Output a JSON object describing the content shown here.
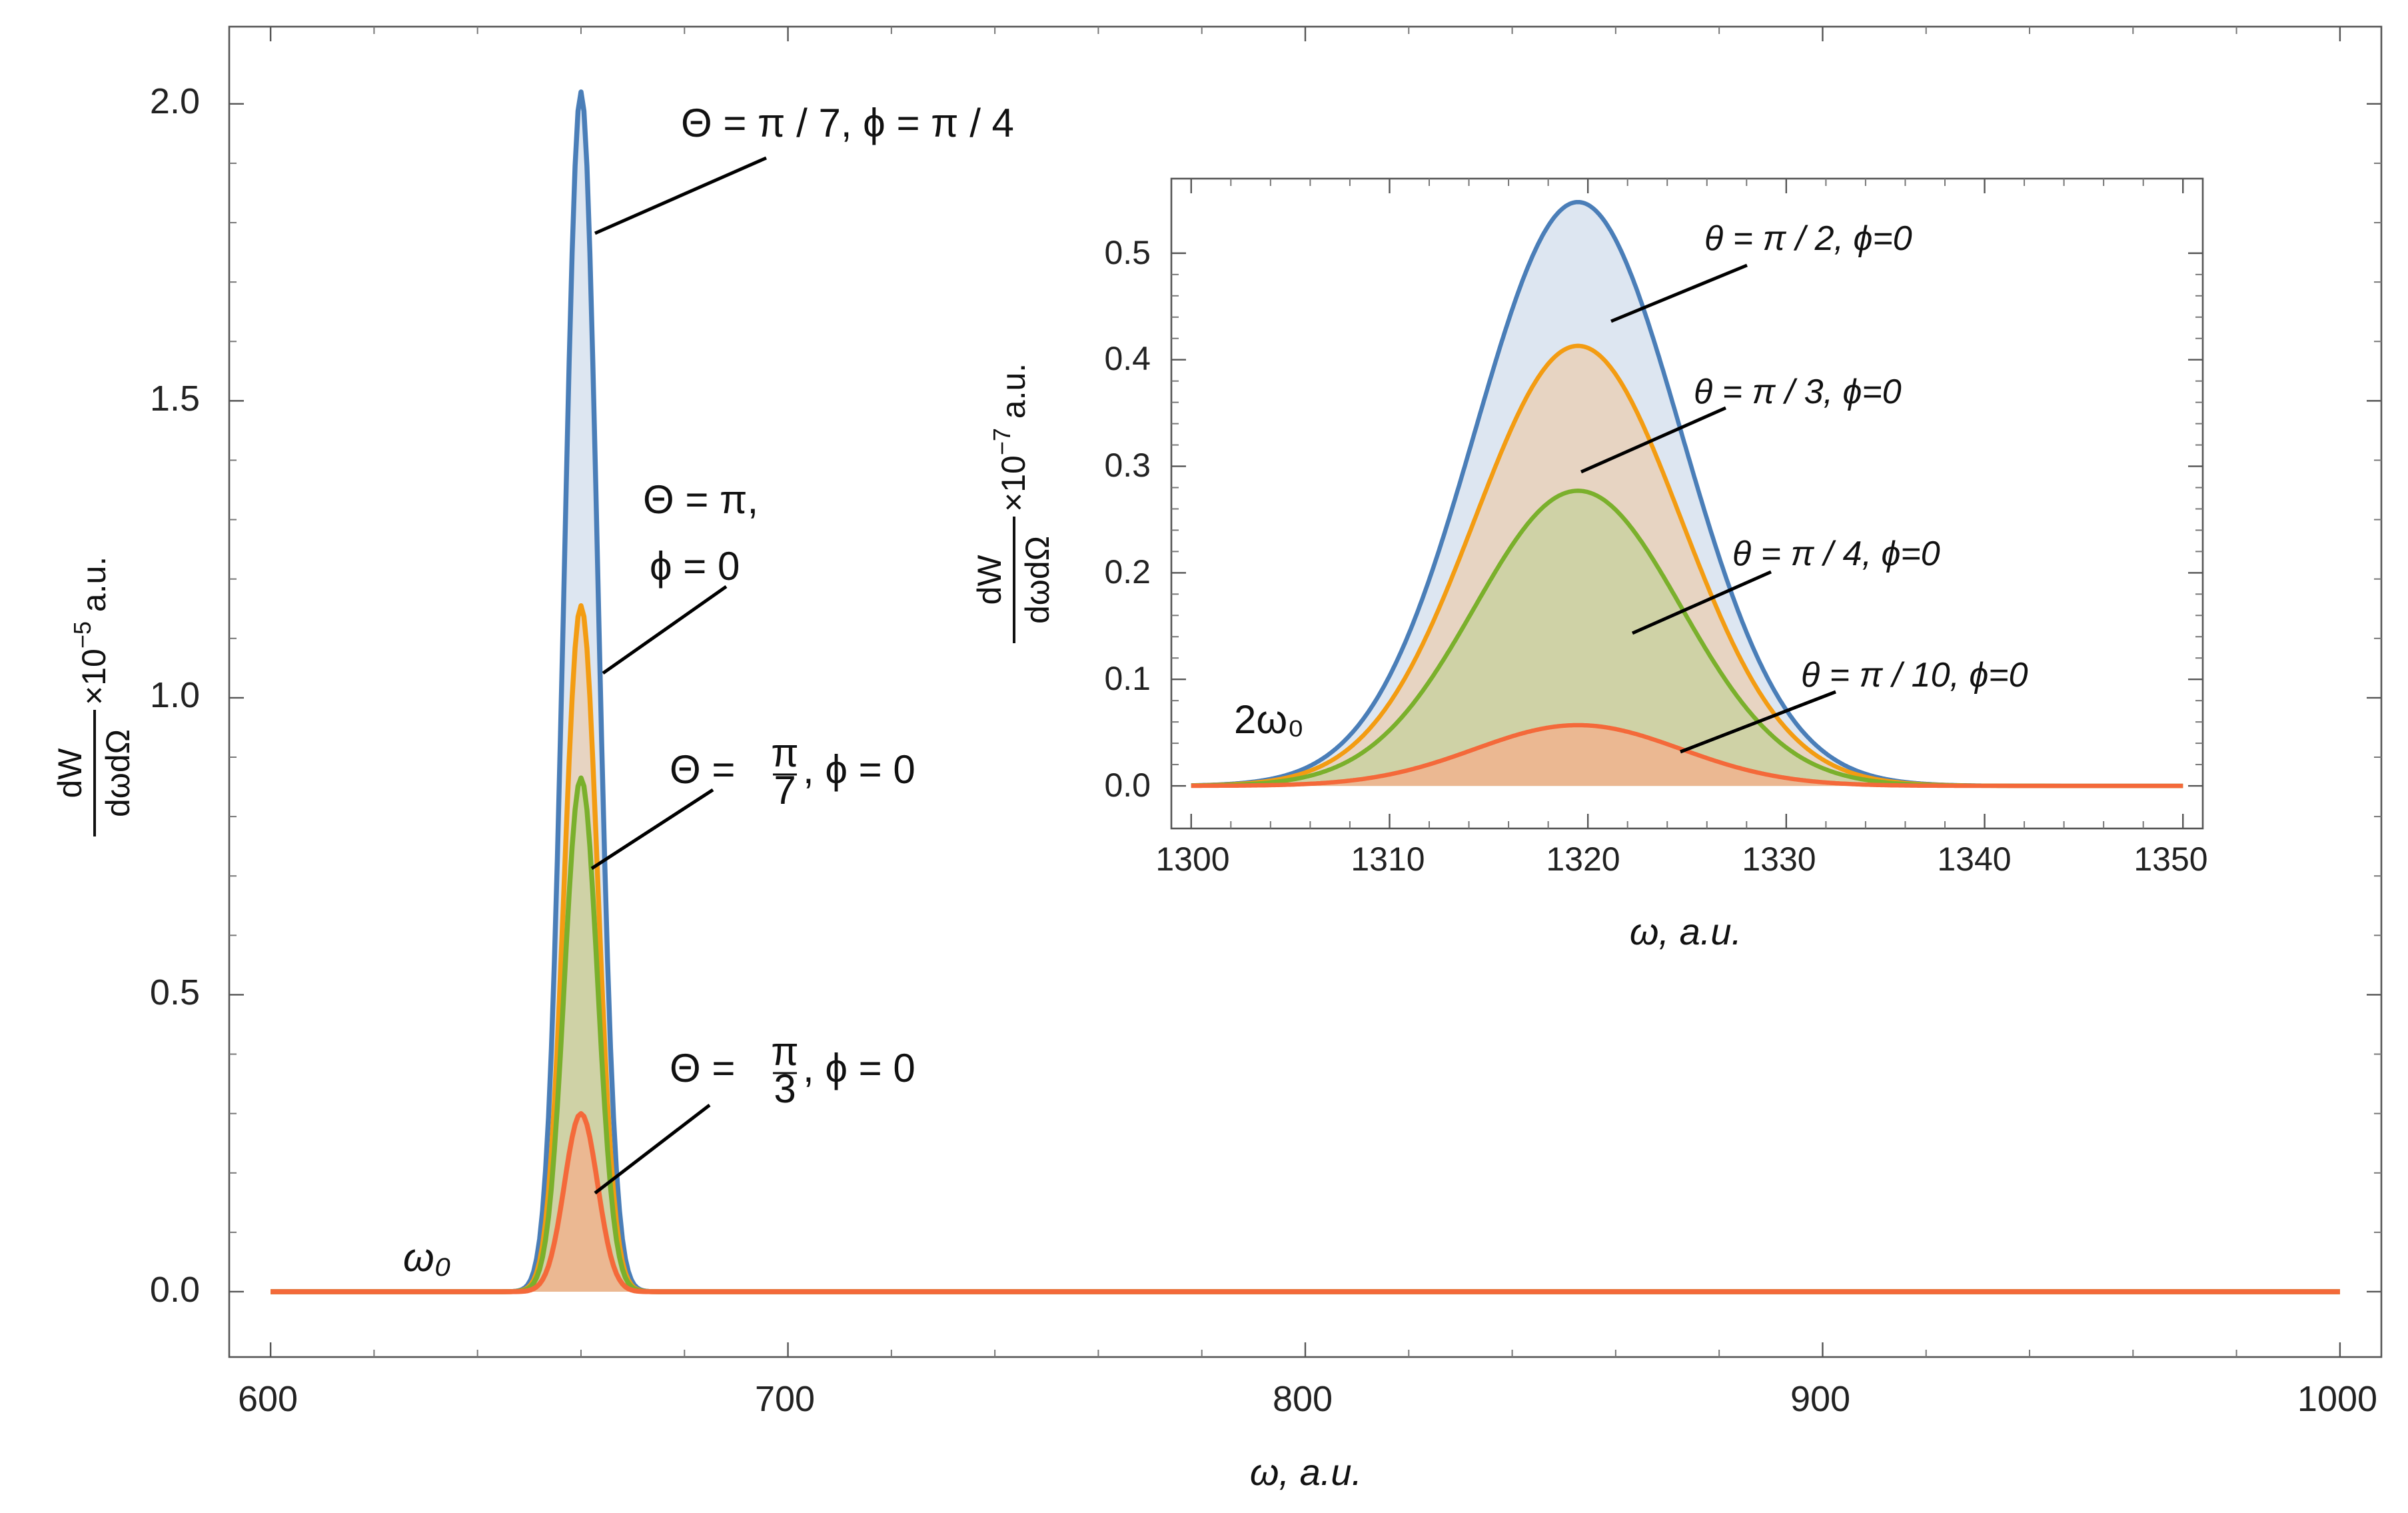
{
  "colors": {
    "blue": "#4a7eb8",
    "orange": "#f39c12",
    "green": "#7ab02c",
    "red": "#f4693a",
    "fill_blue": "#dde6f1",
    "fill_orange": "#e7d4c2",
    "fill_green": "#cfd2a6",
    "fill_red": "#ebb892"
  },
  "chart_data": [
    {
      "type": "area",
      "id": "main",
      "title": "",
      "xlabel": "ω, a.u.",
      "ylabel": {
        "numerator": "dW",
        "denominator": "dωdΩ",
        "times": "×10",
        "exponent": "−5",
        "unit": " a.u."
      },
      "xlim": [
        592,
        1008
      ],
      "ylim": [
        -0.11,
        2.13
      ],
      "x_ticks": [
        "600",
        "700",
        "800",
        "900",
        "1000"
      ],
      "x_tick_values": [
        600,
        700,
        800,
        900,
        1000
      ],
      "y_ticks": [
        "0.0",
        "0.5",
        "1.0",
        "1.5",
        "2.0"
      ],
      "y_tick_values": [
        0,
        0.5,
        1.0,
        1.5,
        2.0
      ],
      "peak_label": "ω₀",
      "curve_center": 660,
      "curve_sigma": 3.2,
      "x_range": [
        600,
        1000
      ],
      "series": [
        {
          "name": "Θ = π / 7, ϕ = π / 4",
          "peak": 2.02,
          "color": "blue"
        },
        {
          "name": "Θ = π, ϕ = 0",
          "peak": 1.155,
          "color": "orange"
        },
        {
          "name": "Θ = π/7, ϕ = 0",
          "peak": 0.865,
          "color": "green"
        },
        {
          "name": "Θ = π/3, ϕ = 0",
          "peak": 0.3,
          "color": "red"
        }
      ],
      "annotations": {
        "a1": "Θ = π / 7, ϕ = π / 4",
        "a2_line1": "Θ = π,",
        "a2_line2": "ϕ = 0",
        "a3_prefix": "Θ = ",
        "a3_num": "π",
        "a3_den": "7",
        "a3_suffix": ", ϕ = 0",
        "a4_prefix": "Θ = ",
        "a4_num": "π",
        "a4_den": "3",
        "a4_suffix": ", ϕ = 0"
      }
    },
    {
      "type": "area",
      "id": "inset",
      "title": "",
      "xlabel": "ω, a.u.",
      "ylabel": {
        "numerator": "dW",
        "denominator": "dωdΩ",
        "times": "×10",
        "exponent": "−7",
        "unit": " a.u."
      },
      "xlim": [
        1299,
        1351
      ],
      "ylim": [
        -0.04,
        0.57
      ],
      "x_ticks": [
        "1300",
        "1310",
        "1320",
        "1330",
        "1340",
        "1350"
      ],
      "x_tick_values": [
        1300,
        1310,
        1320,
        1330,
        1340,
        1350
      ],
      "y_ticks": [
        "0.0",
        "0.1",
        "0.2",
        "0.3",
        "0.4",
        "0.5"
      ],
      "y_tick_values": [
        0,
        0.1,
        0.2,
        0.3,
        0.4,
        0.5
      ],
      "peak_label": "2ω₀",
      "curve_center": 1319.5,
      "curve_sigma": 5.2,
      "x_range": [
        1300,
        1350
      ],
      "series": [
        {
          "name": "θ = π / 2, ϕ=0",
          "peak": 0.548,
          "color": "blue"
        },
        {
          "name": "θ = π / 3, ϕ=0",
          "peak": 0.413,
          "color": "orange"
        },
        {
          "name": "θ = π / 4, ϕ=0",
          "peak": 0.277,
          "color": "green"
        },
        {
          "name": "θ = π / 10, ϕ=0",
          "peak": 0.057,
          "color": "red"
        }
      ]
    }
  ]
}
